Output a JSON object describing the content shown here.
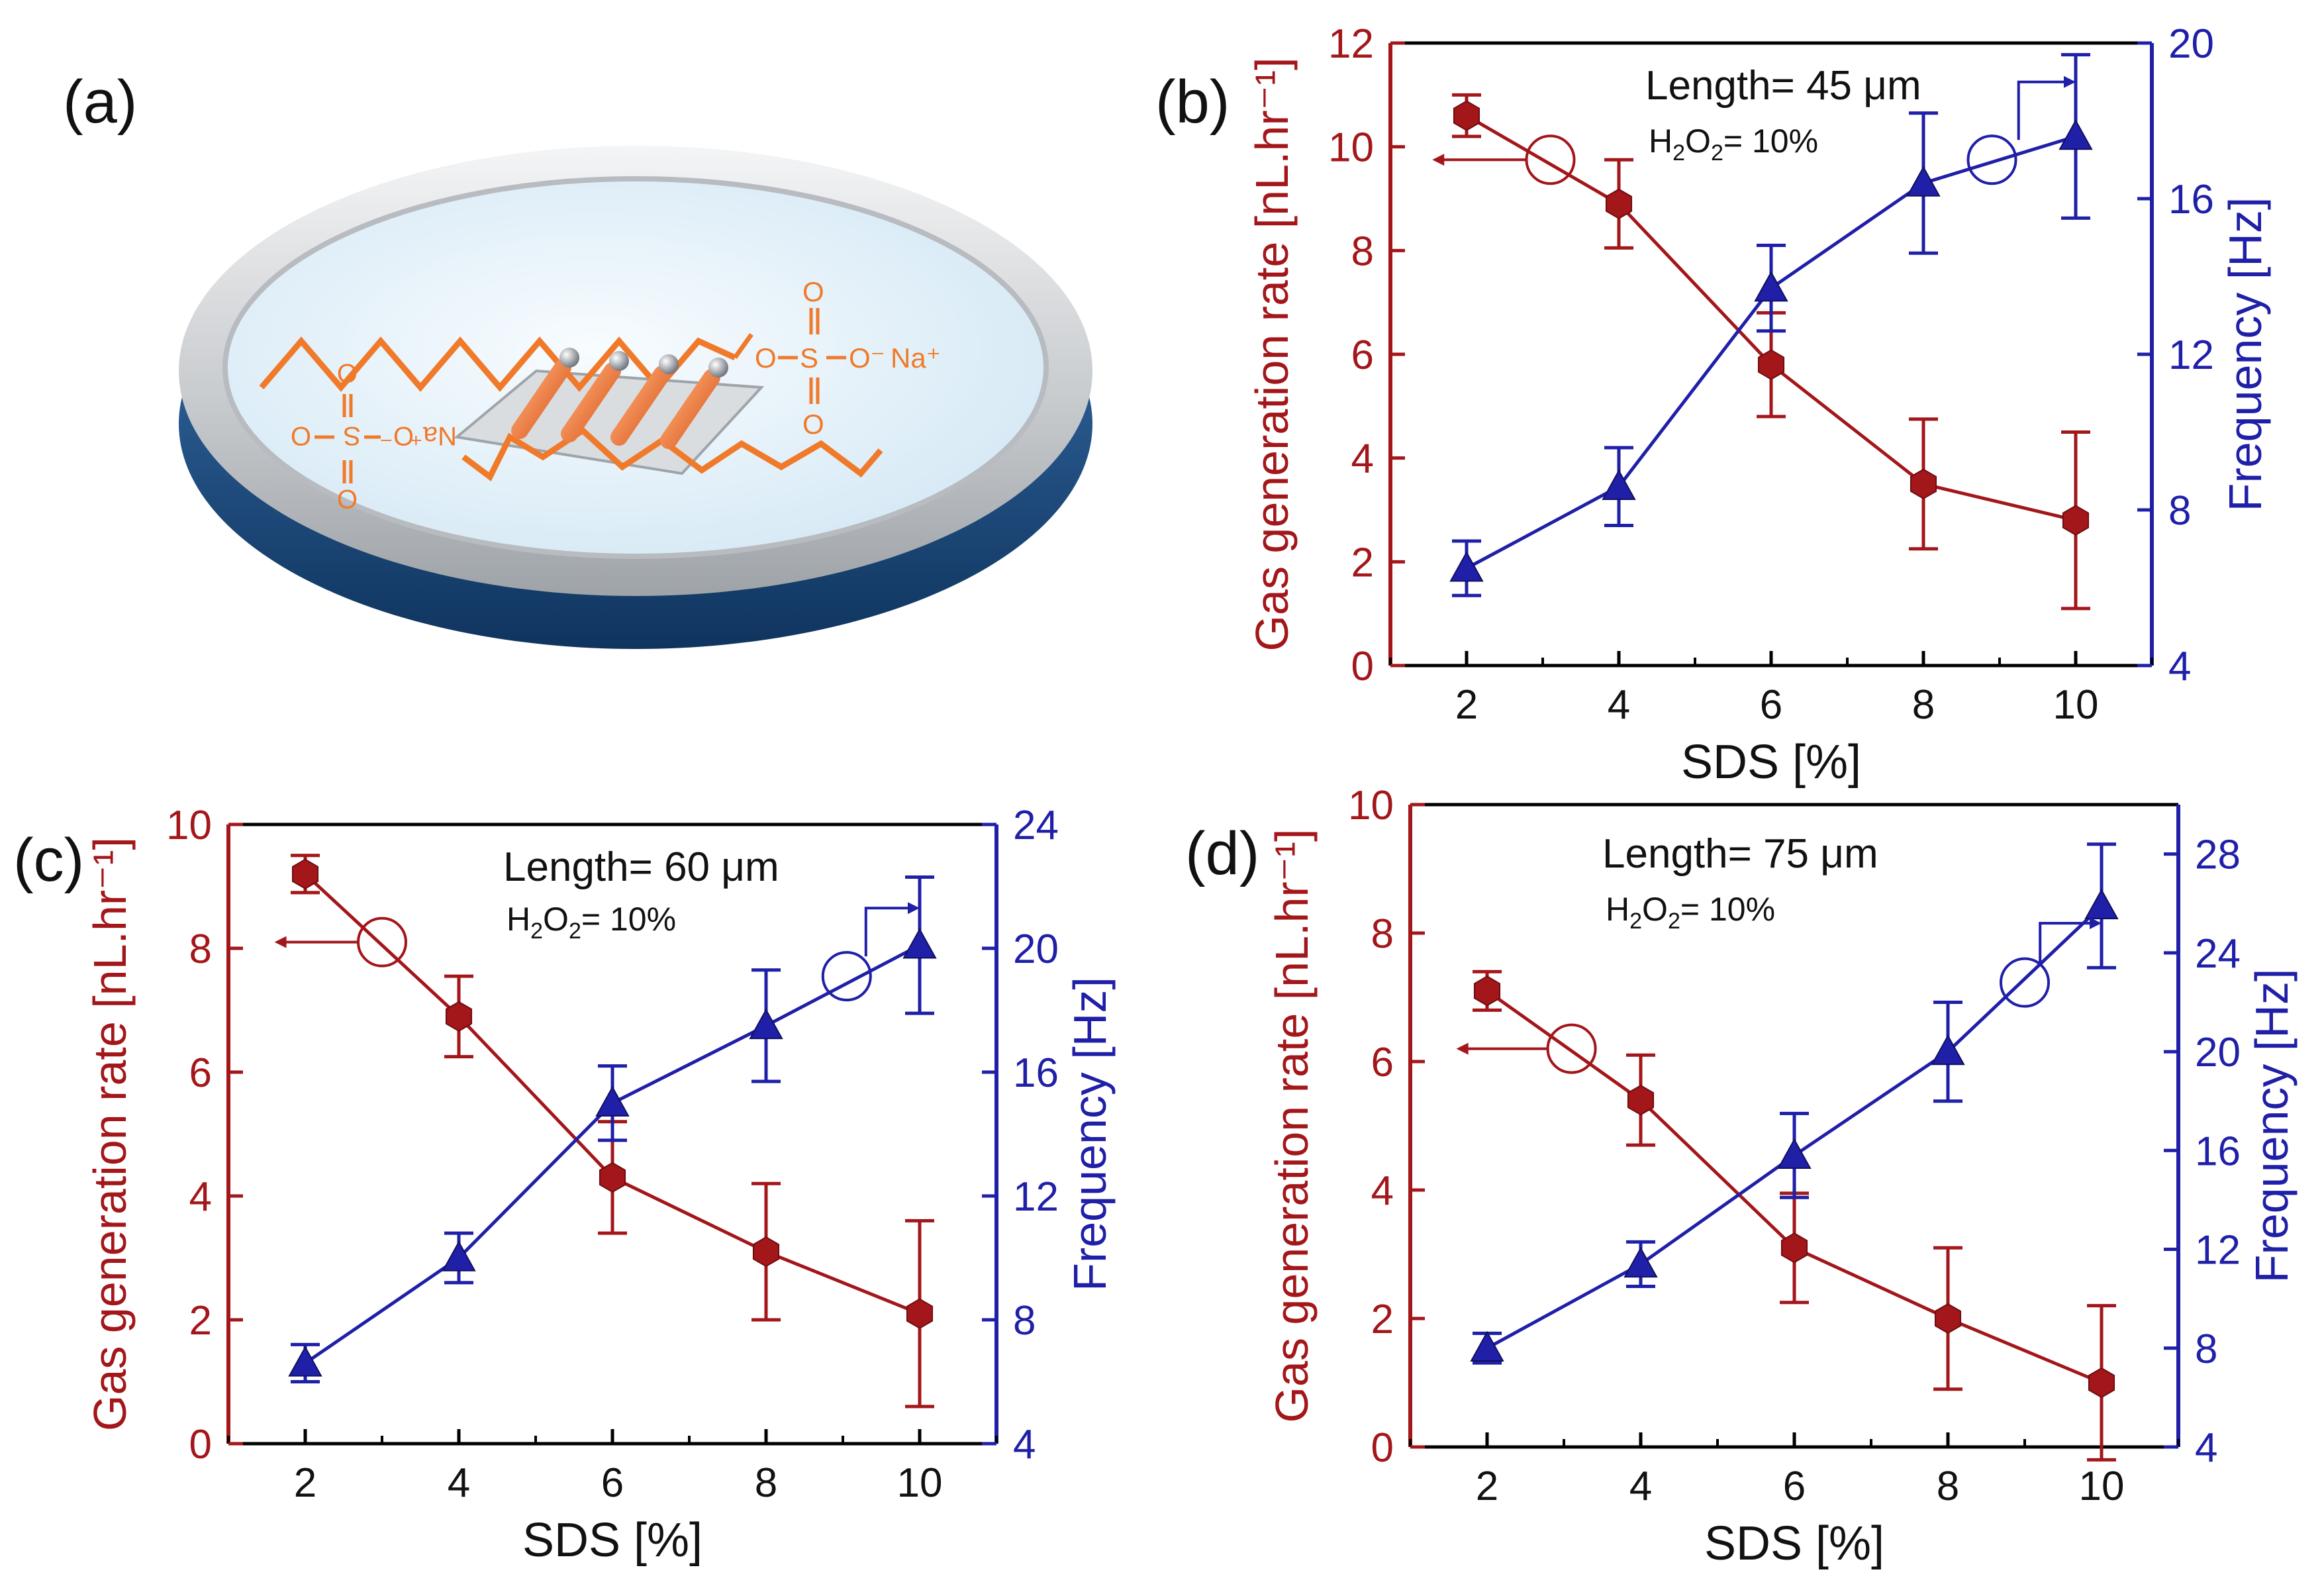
{
  "panel_a": {
    "label": "(a)",
    "chem": {
      "o": "O",
      "s": "S",
      "o_minus": "O⁻",
      "na": "Na⁺"
    }
  },
  "common": {
    "xlabel": "SDS [%]",
    "ylabel_left": "Gas generation rate [nL.hr⁻¹]",
    "ylabel_right": "Frequency [Hz]",
    "h2o2_prefix": "H",
    "h2o2_sub1": "2",
    "h2o2_mid": "O",
    "h2o2_sub2": "2",
    "h2o2_suffix": "= 10%"
  },
  "colors": {
    "gas": "#a3161a",
    "freq": "#1f1fa8",
    "axis_left": "#a3161a",
    "axis_right": "#1f1fa8",
    "dish_rim": "#d7d9db",
    "dish_base": "#1d4f8a",
    "dish_inner": "#e9f4fb",
    "chain": "#f07a2a"
  },
  "chart_data": [
    {
      "panel": "(b)",
      "type": "line",
      "annotation": "Length= 45 μm",
      "x": [
        2,
        4,
        6,
        8,
        10
      ],
      "xticks": [
        "2",
        "4",
        "6",
        "8",
        "10"
      ],
      "xlim": [
        1,
        11
      ],
      "y_left": {
        "name": "Gas generation rate",
        "values": [
          10.6,
          8.9,
          5.8,
          3.5,
          2.8
        ],
        "errors": [
          0.4,
          0.85,
          1.0,
          1.25,
          1.7
        ],
        "ylim": [
          0,
          12
        ],
        "ticks": [
          0,
          2,
          4,
          6,
          8,
          10,
          12
        ]
      },
      "y_right": {
        "name": "Frequency",
        "values": [
          6.5,
          8.6,
          13.7,
          16.4,
          17.6
        ],
        "errors": [
          0.7,
          1.0,
          1.1,
          1.8,
          2.1
        ],
        "ylim": [
          4,
          20
        ],
        "ticks": [
          4,
          8,
          12,
          16,
          20
        ]
      },
      "left_marker": {
        "x": 3.1,
        "y": 9.75,
        "arrow_to": 1.55
      },
      "right_marker": {
        "x": 8.9,
        "y": 17.0,
        "step_x": 9.25,
        "y_top": 19.0,
        "arrow_to": 10.0
      }
    },
    {
      "panel": "(c)",
      "type": "line",
      "annotation": "Length= 60 μm",
      "x": [
        2,
        4,
        6,
        8,
        10
      ],
      "xticks": [
        "2",
        "4",
        "6",
        "8",
        "10"
      ],
      "xlim": [
        1,
        11
      ],
      "y_left": {
        "name": "Gas generation rate",
        "values": [
          9.2,
          6.9,
          4.3,
          3.1,
          2.1
        ],
        "errors": [
          0.3,
          0.65,
          0.9,
          1.1,
          1.5
        ],
        "ylim": [
          0,
          10
        ],
        "ticks": [
          0,
          2,
          4,
          6,
          8,
          10
        ]
      },
      "y_right": {
        "name": "Frequency",
        "values": [
          6.6,
          10.0,
          15.0,
          17.5,
          20.1
        ],
        "errors": [
          0.6,
          0.8,
          1.2,
          1.8,
          2.2
        ],
        "ylim": [
          4,
          24
        ],
        "ticks": [
          4,
          8,
          12,
          16,
          20,
          24
        ]
      },
      "left_marker": {
        "x": 3.0,
        "y": 8.1,
        "arrow_to": 1.6
      },
      "right_marker": {
        "x": 9.05,
        "y": 19.1,
        "step_x": 9.3,
        "y_top": 21.3,
        "arrow_to": 10.0
      }
    },
    {
      "panel": "(d)",
      "type": "line",
      "annotation": "Length= 75 μm",
      "x": [
        2,
        4,
        6,
        8,
        10
      ],
      "xticks": [
        "2",
        "4",
        "6",
        "8",
        "10"
      ],
      "xlim": [
        1,
        11
      ],
      "y_left": {
        "name": "Gas generation rate",
        "values": [
          7.1,
          5.4,
          3.1,
          2.0,
          1.0
        ],
        "errors": [
          0.3,
          0.7,
          0.85,
          1.1,
          1.2
        ],
        "ylim": [
          0,
          10
        ],
        "ticks": [
          0,
          2,
          4,
          6,
          8,
          10
        ]
      },
      "y_right": {
        "name": "Frequency",
        "values": [
          8.0,
          11.4,
          15.8,
          20.0,
          25.9
        ],
        "errors": [
          0.6,
          0.9,
          1.7,
          2.0,
          2.5
        ],
        "ylim": [
          4,
          30
        ],
        "ticks": [
          4,
          8,
          12,
          16,
          20,
          24,
          28
        ]
      },
      "left_marker": {
        "x": 3.1,
        "y": 6.2,
        "arrow_to": 1.6
      },
      "right_marker": {
        "x": 9.0,
        "y": 22.8,
        "step_x": 9.2,
        "y_top": 25.2,
        "arrow_to": 10.0
      }
    }
  ]
}
